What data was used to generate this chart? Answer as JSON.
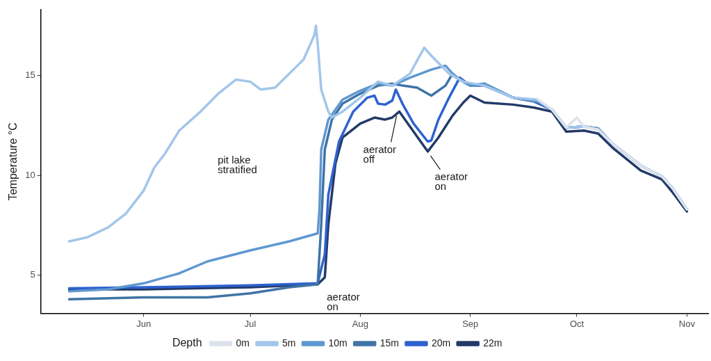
{
  "chart_data": {
    "type": "line",
    "ylabel": "Temperature °C",
    "legend_title": "Depth",
    "legend": "bottom",
    "grid": false,
    "marker": "none",
    "line_style": "solid",
    "xlim": [
      "--05-03",
      "--11-07"
    ],
    "xticks": [
      {
        "value": "--06-01",
        "label": "Jun"
      },
      {
        "value": "--07-01",
        "label": "Jul"
      },
      {
        "value": "--08-01",
        "label": "Aug"
      },
      {
        "value": "--09-01",
        "label": "Sep"
      },
      {
        "value": "--10-01",
        "label": "Oct"
      },
      {
        "value": "--11-01",
        "label": "Nov"
      }
    ],
    "ylim": [
      3.1,
      18.3
    ],
    "yticks": [
      5,
      10,
      15
    ],
    "series": [
      {
        "name": "0m",
        "color": "#dde3ec",
        "x": [
          "--09-20",
          "--09-24",
          "--09-28",
          "--10-01",
          "--10-03",
          "--10-07",
          "--10-11",
          "--10-19",
          "--10-25",
          "--10-28",
          "--11-01"
        ],
        "values": [
          13.8,
          13.3,
          12.4,
          12.9,
          12.45,
          12.3,
          11.6,
          10.5,
          9.95,
          9.35,
          8.3
        ]
      },
      {
        "name": "5m",
        "color": "#a3c6ea",
        "x": [
          "--05-11",
          "--05-16",
          "--05-22",
          "--05-27",
          "--06-01",
          "--06-04",
          "--06-07",
          "--06-11",
          "--06-17",
          "--06-22",
          "--06-27",
          "--07-01",
          "--07-04",
          "--07-08",
          "--07-12",
          "--07-16",
          "--07-19",
          "--07-19T12:00",
          "--07-20",
          "--07-21",
          "--07-23",
          "--07-24",
          "--07-27",
          "--08-01",
          "--08-06",
          "--08-10",
          "--08-15",
          "--08-19",
          "--08-21",
          "--08-26",
          "--08-30",
          "--09-05",
          "--09-13",
          "--09-20",
          "--09-24",
          "--09-28",
          "--10-03",
          "--10-07",
          "--10-11",
          "--10-19",
          "--10-25",
          "--10-28",
          "--11-01"
        ],
        "values": [
          6.7,
          6.9,
          7.4,
          8.1,
          9.25,
          10.4,
          11.1,
          12.25,
          13.2,
          14.1,
          14.8,
          14.7,
          14.3,
          14.4,
          15.1,
          15.8,
          17.0,
          17.5,
          16.6,
          14.3,
          13.2,
          12.9,
          13.2,
          13.9,
          14.7,
          14.5,
          15.1,
          16.4,
          16.0,
          15.1,
          14.7,
          14.5,
          13.9,
          13.8,
          13.3,
          12.4,
          12.45,
          12.3,
          11.6,
          10.5,
          9.95,
          9.35,
          8.3
        ]
      },
      {
        "name": "10m",
        "color": "#5f98d0",
        "x": [
          "--05-11",
          "--05-22",
          "--06-01",
          "--06-11",
          "--06-19",
          "--07-01",
          "--07-12",
          "--07-20",
          "--07-20T12:00",
          "--07-21",
          "--07-23",
          "--07-27",
          "--08-01",
          "--08-06",
          "--08-10",
          "--08-15",
          "--08-21",
          "--08-25",
          "--08-28",
          "--09-01",
          "--09-05",
          "--09-13",
          "--09-20",
          "--09-24",
          "--09-28",
          "--10-03",
          "--10-07",
          "--10-11",
          "--10-19",
          "--10-25",
          "--10-28",
          "--11-01"
        ],
        "values": [
          4.2,
          4.3,
          4.6,
          5.1,
          5.7,
          6.25,
          6.7,
          7.1,
          8.3,
          11.3,
          12.8,
          13.8,
          14.25,
          14.6,
          14.5,
          14.9,
          15.3,
          15.5,
          14.9,
          14.5,
          14.6,
          13.9,
          13.7,
          13.3,
          12.4,
          12.45,
          12.35,
          11.6,
          10.5,
          9.95,
          9.35,
          8.3
        ]
      },
      {
        "name": "15m",
        "color": "#3f74a6",
        "x": [
          "--05-11",
          "--06-01",
          "--06-19",
          "--07-01",
          "--07-12",
          "--07-20",
          "--07-21",
          "--07-22",
          "--07-24",
          "--07-27",
          "--08-01",
          "--08-06",
          "--08-10",
          "--08-13",
          "--08-17",
          "--08-21",
          "--08-25",
          "--08-27",
          "--08-29",
          "--09-01",
          "--09-05",
          "--09-13",
          "--09-20",
          "--09-24",
          "--09-28",
          "--10-03",
          "--10-07",
          "--10-11",
          "--10-19",
          "--10-25",
          "--10-28",
          "--11-01"
        ],
        "values": [
          3.8,
          3.9,
          3.9,
          4.1,
          4.4,
          4.55,
          7.55,
          11.3,
          12.8,
          13.6,
          14.1,
          14.5,
          14.6,
          14.5,
          14.4,
          14.0,
          14.5,
          15.1,
          14.8,
          14.5,
          14.6,
          13.9,
          13.7,
          13.3,
          12.4,
          12.45,
          12.35,
          11.6,
          10.5,
          9.95,
          9.35,
          8.3
        ]
      },
      {
        "name": "20m",
        "color": "#2e62d0",
        "x": [
          "--05-11",
          "--06-01",
          "--07-01",
          "--07-20",
          "--07-22",
          "--07-23",
          "--07-26",
          "--07-30",
          "--08-03",
          "--08-05",
          "--08-06",
          "--08-08",
          "--08-10",
          "--08-11",
          "--08-13",
          "--08-16",
          "--08-20",
          "--08-21",
          "--08-23",
          "--08-26",
          "--08-29",
          "--09-01",
          "--09-05",
          "--09-13",
          "--09-19",
          "--09-24",
          "--09-28",
          "--10-03",
          "--10-07",
          "--10-11",
          "--10-19",
          "--10-25",
          "--10-28",
          "--11-01"
        ],
        "values": [
          4.35,
          4.4,
          4.5,
          4.6,
          6.05,
          9.05,
          11.7,
          13.2,
          13.9,
          14.0,
          13.6,
          13.55,
          13.75,
          14.3,
          13.55,
          12.6,
          11.7,
          11.75,
          12.8,
          13.9,
          14.9,
          14.5,
          14.5,
          13.9,
          13.7,
          13.3,
          12.4,
          12.45,
          12.35,
          11.6,
          10.5,
          9.95,
          9.35,
          8.3
        ]
      },
      {
        "name": "22m",
        "color": "#233a68",
        "x": [
          "--05-11",
          "--06-01",
          "--07-01",
          "--07-20",
          "--07-22",
          "--07-23",
          "--07-25",
          "--07-27",
          "--08-01",
          "--08-05",
          "--08-08",
          "--08-10",
          "--08-12",
          "--08-15",
          "--08-18",
          "--08-20",
          "--08-23",
          "--08-27",
          "--08-30",
          "--09-01",
          "--09-05",
          "--09-13",
          "--09-19",
          "--09-24",
          "--09-28",
          "--10-03",
          "--10-07",
          "--10-11",
          "--10-19",
          "--10-25",
          "--10-28",
          "--11-01"
        ],
        "values": [
          4.3,
          4.3,
          4.4,
          4.55,
          4.9,
          7.55,
          10.6,
          11.9,
          12.6,
          12.9,
          12.8,
          12.9,
          13.2,
          12.45,
          11.7,
          11.2,
          11.9,
          13.0,
          13.65,
          14.0,
          13.65,
          13.55,
          13.4,
          13.2,
          12.2,
          12.25,
          12.1,
          11.4,
          10.25,
          9.8,
          9.15,
          8.2
        ]
      }
    ],
    "annotations": [
      "pit lake\nstratified",
      {
        "text": "aerator\non",
        "x": "--07-21",
        "y": 4.55
      },
      {
        "text": "aerator\noff",
        "x": "--08-12",
        "y": 13.2
      },
      {
        "text": "aerator\non",
        "x": "--08-20",
        "y": 11.2
      }
    ]
  }
}
